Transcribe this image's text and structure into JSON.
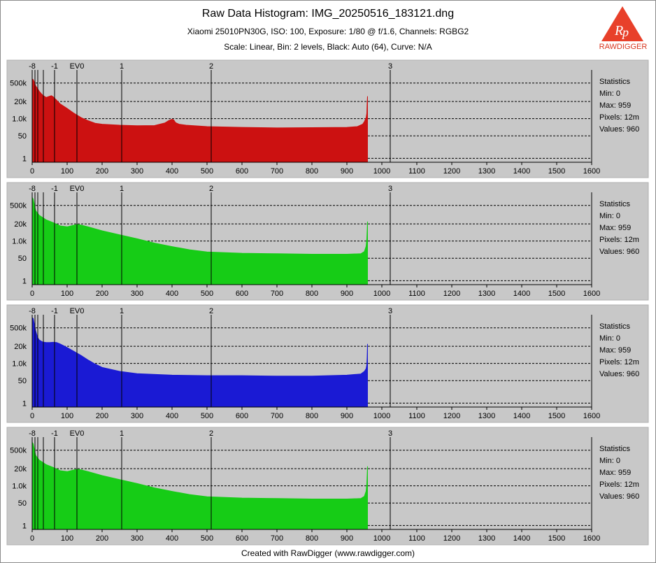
{
  "header": {
    "title": "Raw Data Histogram: IMG_20250516_183121.dng",
    "subtitle": "Xiaomi 25010PN30G, ISO: 100, Exposure: 1/80 @ f/1.6, Channels: RGBG2",
    "settings": "Scale: Linear, Bin: 2 levels, Black: Auto (64), Curve: N/A"
  },
  "logo": {
    "text": "RAWDIGGER",
    "colors": {
      "triangle": "#e8402a",
      "text": "#d8361f"
    }
  },
  "footer": "Created with RawDigger (www.rawdigger.com)",
  "chart_data": [
    {
      "type": "area",
      "channel": "R",
      "color": "#cc1111",
      "xlim": [
        0,
        1600
      ],
      "x_ticks": [
        0,
        100,
        200,
        300,
        400,
        500,
        600,
        700,
        800,
        900,
        1000,
        1100,
        1200,
        1300,
        1400,
        1500,
        1600
      ],
      "y_scale": "log",
      "y_ticks": [
        "500k",
        "20k",
        "1.0k",
        "50",
        "1"
      ],
      "y_tick_values": [
        500000,
        20000,
        1000,
        50,
        1
      ],
      "ev_markers": [
        {
          "label": "-8",
          "x": 0
        },
        {
          "label": "",
          "x": 8
        },
        {
          "label": "",
          "x": 16
        },
        {
          "label": "",
          "x": 32
        },
        {
          "label": "-1",
          "x": 64
        },
        {
          "label": "EV0",
          "x": 128
        },
        {
          "label": "1",
          "x": 256
        },
        {
          "label": "2",
          "x": 512
        },
        {
          "label": "3",
          "x": 1024
        }
      ],
      "x": [
        0,
        3,
        6,
        10,
        15,
        20,
        30,
        40,
        50,
        55,
        60,
        70,
        80,
        100,
        120,
        140,
        160,
        180,
        200,
        250,
        300,
        350,
        380,
        390,
        400,
        405,
        410,
        420,
        440,
        500,
        600,
        700,
        800,
        900,
        930,
        945,
        950,
        955,
        957,
        958,
        959
      ],
      "y": [
        1000000,
        900000,
        600000,
        300000,
        200000,
        120000,
        60000,
        40000,
        50000,
        55000,
        45000,
        25000,
        13000,
        6000,
        2500,
        1200,
        700,
        450,
        380,
        320,
        290,
        300,
        480,
        700,
        900,
        800,
        500,
        380,
        320,
        250,
        220,
        200,
        210,
        220,
        250,
        380,
        600,
        1200,
        2500,
        15000,
        50000
      ],
      "statistics": {
        "title": "Statistics",
        "min": "Min: 0",
        "max": "Max: 959",
        "pixels": "Pixels: 12m",
        "values": "Values: 960"
      }
    },
    {
      "type": "area",
      "channel": "G",
      "color": "#16cc16",
      "xlim": [
        0,
        1600
      ],
      "x_ticks": [
        0,
        100,
        200,
        300,
        400,
        500,
        600,
        700,
        800,
        900,
        1000,
        1100,
        1200,
        1300,
        1400,
        1500,
        1600
      ],
      "y_scale": "log",
      "y_ticks": [
        "500k",
        "20k",
        "1.0k",
        "50",
        "1"
      ],
      "y_tick_values": [
        500000,
        20000,
        1000,
        50,
        1
      ],
      "ev_markers": [
        {
          "label": "-8",
          "x": 0
        },
        {
          "label": "",
          "x": 8
        },
        {
          "label": "",
          "x": 16
        },
        {
          "label": "",
          "x": 32
        },
        {
          "label": "-1",
          "x": 64
        },
        {
          "label": "EV0",
          "x": 128
        },
        {
          "label": "1",
          "x": 256
        },
        {
          "label": "2",
          "x": 512
        },
        {
          "label": "3",
          "x": 1024
        }
      ],
      "x": [
        0,
        3,
        6,
        10,
        20,
        30,
        40,
        60,
        80,
        100,
        120,
        130,
        140,
        160,
        200,
        250,
        300,
        350,
        400,
        450,
        500,
        600,
        700,
        800,
        900,
        940,
        950,
        955,
        957,
        958,
        959
      ],
      "y": [
        2000000,
        1500000,
        600000,
        200000,
        90000,
        60000,
        40000,
        25000,
        14000,
        12000,
        16000,
        18000,
        16000,
        12000,
        6000,
        3000,
        1500,
        700,
        380,
        220,
        150,
        120,
        110,
        100,
        100,
        110,
        160,
        400,
        1500,
        6000,
        30000
      ],
      "statistics": {
        "title": "Statistics",
        "min": "Min: 0",
        "max": "Max: 959",
        "pixels": "Pixels: 12m",
        "values": "Values: 960"
      }
    },
    {
      "type": "area",
      "channel": "B",
      "color": "#1a1ad4",
      "xlim": [
        0,
        1600
      ],
      "x_ticks": [
        0,
        100,
        200,
        300,
        400,
        500,
        600,
        700,
        800,
        900,
        1000,
        1100,
        1200,
        1300,
        1400,
        1500,
        1600
      ],
      "y_scale": "log",
      "y_ticks": [
        "500k",
        "20k",
        "1.0k",
        "50",
        "1"
      ],
      "y_tick_values": [
        500000,
        20000,
        1000,
        50,
        1
      ],
      "ev_markers": [
        {
          "label": "-8",
          "x": 0
        },
        {
          "label": "",
          "x": 8
        },
        {
          "label": "",
          "x": 16
        },
        {
          "label": "",
          "x": 32
        },
        {
          "label": "-1",
          "x": 64
        },
        {
          "label": "EV0",
          "x": 128
        },
        {
          "label": "1",
          "x": 256
        },
        {
          "label": "2",
          "x": 512
        },
        {
          "label": "3",
          "x": 1024
        }
      ],
      "x": [
        0,
        3,
        6,
        10,
        15,
        20,
        30,
        40,
        50,
        60,
        70,
        80,
        90,
        100,
        120,
        140,
        160,
        180,
        200,
        250,
        300,
        400,
        500,
        600,
        700,
        800,
        900,
        940,
        950,
        955,
        957,
        958,
        959
      ],
      "y": [
        3000000,
        2500000,
        1000000,
        300000,
        100000,
        60000,
        42000,
        38000,
        38000,
        40000,
        38000,
        30000,
        22000,
        16000,
        8000,
        4000,
        1800,
        900,
        500,
        250,
        170,
        130,
        120,
        120,
        110,
        110,
        130,
        160,
        250,
        400,
        800,
        3000,
        30000
      ],
      "statistics": {
        "title": "Statistics",
        "min": "Min: 0",
        "max": "Max: 959",
        "pixels": "Pixels: 12m",
        "values": "Values: 960"
      }
    },
    {
      "type": "area",
      "channel": "G2",
      "color": "#16cc16",
      "xlim": [
        0,
        1600
      ],
      "x_ticks": [
        0,
        100,
        200,
        300,
        400,
        500,
        600,
        700,
        800,
        900,
        1000,
        1100,
        1200,
        1300,
        1400,
        1500,
        1600
      ],
      "y_scale": "log",
      "y_ticks": [
        "500k",
        "20k",
        "1.0k",
        "50",
        "1"
      ],
      "y_tick_values": [
        500000,
        20000,
        1000,
        50,
        1
      ],
      "ev_markers": [
        {
          "label": "-8",
          "x": 0
        },
        {
          "label": "",
          "x": 8
        },
        {
          "label": "",
          "x": 16
        },
        {
          "label": "",
          "x": 32
        },
        {
          "label": "-1",
          "x": 64
        },
        {
          "label": "EV0",
          "x": 128
        },
        {
          "label": "1",
          "x": 256
        },
        {
          "label": "2",
          "x": 512
        },
        {
          "label": "3",
          "x": 1024
        }
      ],
      "x": [
        0,
        3,
        6,
        10,
        20,
        30,
        40,
        60,
        80,
        100,
        120,
        130,
        140,
        160,
        200,
        250,
        300,
        350,
        400,
        450,
        500,
        600,
        700,
        800,
        900,
        940,
        950,
        955,
        957,
        958,
        959
      ],
      "y": [
        2000000,
        1500000,
        600000,
        200000,
        90000,
        60000,
        40000,
        25000,
        14000,
        12000,
        16000,
        18000,
        16000,
        12000,
        6000,
        3000,
        1500,
        700,
        380,
        220,
        150,
        120,
        110,
        100,
        100,
        110,
        160,
        400,
        1500,
        6000,
        30000
      ],
      "statistics": {
        "title": "Statistics",
        "min": "Min: 0",
        "max": "Max: 959",
        "pixels": "Pixels: 12m",
        "values": "Values: 960"
      }
    }
  ]
}
